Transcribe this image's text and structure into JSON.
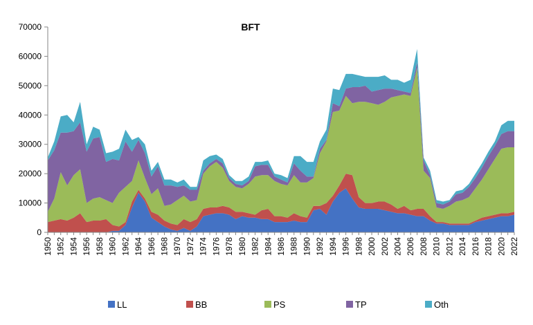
{
  "chart_data": {
    "type": "area",
    "stacked": true,
    "title": "BFT",
    "xlabel": "",
    "ylabel": "",
    "x": [
      1950,
      1951,
      1952,
      1953,
      1954,
      1955,
      1956,
      1957,
      1958,
      1959,
      1960,
      1961,
      1962,
      1963,
      1964,
      1965,
      1966,
      1967,
      1968,
      1969,
      1970,
      1971,
      1972,
      1973,
      1974,
      1975,
      1976,
      1977,
      1978,
      1979,
      1980,
      1981,
      1982,
      1983,
      1984,
      1985,
      1986,
      1987,
      1988,
      1989,
      1990,
      1991,
      1992,
      1993,
      1994,
      1995,
      1996,
      1997,
      1998,
      1999,
      2000,
      2001,
      2002,
      2003,
      2004,
      2005,
      2006,
      2007,
      2008,
      2009,
      2010,
      2011,
      2012,
      2013,
      2014,
      2015,
      2016,
      2017,
      2018,
      2019,
      2020,
      2021,
      2022
    ],
    "x_tick_labels": [
      "1950",
      "1952",
      "1954",
      "1956",
      "1958",
      "1960",
      "1962",
      "1964",
      "1966",
      "1968",
      "1970",
      "1972",
      "1974",
      "1976",
      "1978",
      "1980",
      "1982",
      "1984",
      "1986",
      "1988",
      "1990",
      "1992",
      "1994",
      "1996",
      "1998",
      "2000",
      "2002",
      "2004",
      "2006",
      "2008",
      "2010",
      "2012",
      "2014",
      "2016",
      "2018",
      "2020",
      "2022"
    ],
    "y_ticks": [
      "0",
      "10000",
      "20000",
      "30000",
      "40000",
      "50000",
      "60000",
      "70000"
    ],
    "ylim": [
      0,
      70000
    ],
    "grid": false,
    "legend_position": "bottom",
    "series": [
      {
        "name": "LL",
        "color": "#4472C4",
        "values": [
          0,
          0,
          0,
          0,
          0,
          0,
          0,
          0,
          0,
          0,
          500,
          500,
          2500,
          8500,
          13500,
          10500,
          5000,
          3500,
          2000,
          1000,
          500,
          1500,
          500,
          2000,
          5500,
          6000,
          6500,
          6500,
          6000,
          4500,
          5500,
          5000,
          5000,
          4500,
          4500,
          3500,
          3500,
          3500,
          4000,
          3500,
          3500,
          7500,
          8000,
          6000,
          10500,
          13500,
          15000,
          11500,
          8500,
          8000,
          8000,
          8000,
          7500,
          7000,
          6500,
          6500,
          6000,
          5500,
          5500,
          4000,
          3000,
          3000,
          2500,
          2500,
          2500,
          2500,
          3500,
          4000,
          4500,
          5000,
          5500,
          5500,
          6000
        ]
      },
      {
        "name": "BB",
        "color": "#C0504D",
        "values": [
          3500,
          4000,
          4500,
          4000,
          5000,
          6500,
          3500,
          4000,
          4000,
          4500,
          2000,
          1500,
          1000,
          2000,
          1000,
          1000,
          2000,
          2500,
          2000,
          2000,
          2000,
          3000,
          3000,
          2500,
          2500,
          2500,
          2000,
          2500,
          2500,
          2500,
          1500,
          1500,
          1000,
          3000,
          3500,
          2000,
          2000,
          1500,
          2500,
          2000,
          1500,
          1500,
          1000,
          4000,
          2000,
          2500,
          5000,
          8000,
          3500,
          2000,
          2000,
          2500,
          3000,
          2500,
          1500,
          2500,
          1500,
          2500,
          2500,
          1500,
          500,
          500,
          500,
          500,
          500,
          500,
          500,
          1000,
          1000,
          1000,
          1000,
          1000,
          1000
        ]
      },
      {
        "name": "PS",
        "color": "#9BBB59",
        "values": [
          3500,
          7500,
          16000,
          12000,
          14500,
          15000,
          6500,
          7500,
          8000,
          6500,
          7500,
          11500,
          12000,
          7000,
          10000,
          7000,
          6000,
          9000,
          5000,
          6500,
          8500,
          8000,
          7000,
          6500,
          12000,
          14000,
          15500,
          13000,
          9000,
          8500,
          8000,
          10000,
          13000,
          12000,
          11500,
          12000,
          11000,
          11000,
          13000,
          11500,
          12000,
          9500,
          18000,
          21000,
          28500,
          25500,
          26500,
          24500,
          32500,
          34500,
          34000,
          33000,
          34000,
          36500,
          38500,
          38000,
          39000,
          48000,
          13000,
          13000,
          5000,
          4500,
          6000,
          7500,
          8000,
          9000,
          11000,
          13000,
          16000,
          19000,
          22000,
          22500,
          22000
        ]
      },
      {
        "name": "TP",
        "color": "#8064A2",
        "values": [
          17500,
          16500,
          13500,
          18000,
          15000,
          16000,
          17500,
          20500,
          20500,
          13000,
          15000,
          11000,
          15500,
          10000,
          7000,
          8500,
          6000,
          7500,
          7000,
          6500,
          4500,
          3500,
          4000,
          3500,
          1000,
          1000,
          1000,
          1500,
          1000,
          1000,
          1000,
          1000,
          3500,
          3500,
          3500,
          1500,
          1500,
          1000,
          4000,
          4000,
          2000,
          500,
          1500,
          500,
          3000,
          1500,
          2500,
          5500,
          5000,
          5500,
          4000,
          5000,
          4500,
          3000,
          2000,
          1000,
          1000,
          2000,
          3500,
          1000,
          1500,
          1500,
          1500,
          2500,
          2500,
          3500,
          3500,
          4000,
          4500,
          4500,
          5000,
          5500,
          5500
        ]
      },
      {
        "name": "Oth",
        "color": "#4BACC6",
        "values": [
          1000,
          3000,
          5500,
          6000,
          3000,
          7000,
          2500,
          4000,
          2500,
          3000,
          2500,
          4000,
          4000,
          4000,
          1000,
          3000,
          2000,
          1500,
          2000,
          2000,
          1500,
          2000,
          1000,
          1000,
          3500,
          2500,
          1500,
          1500,
          1000,
          1000,
          1500,
          1500,
          1500,
          1000,
          1500,
          1000,
          1500,
          1500,
          2500,
          5000,
          5000,
          5000,
          2500,
          3500,
          5000,
          5500,
          5000,
          4500,
          4000,
          3000,
          5000,
          4500,
          4500,
          3000,
          3500,
          3000,
          4500,
          4500,
          1000,
          1500,
          1000,
          1000,
          500,
          1000,
          1000,
          1000,
          1500,
          1500,
          1500,
          1500,
          3000,
          3500,
          3500
        ]
      }
    ]
  }
}
